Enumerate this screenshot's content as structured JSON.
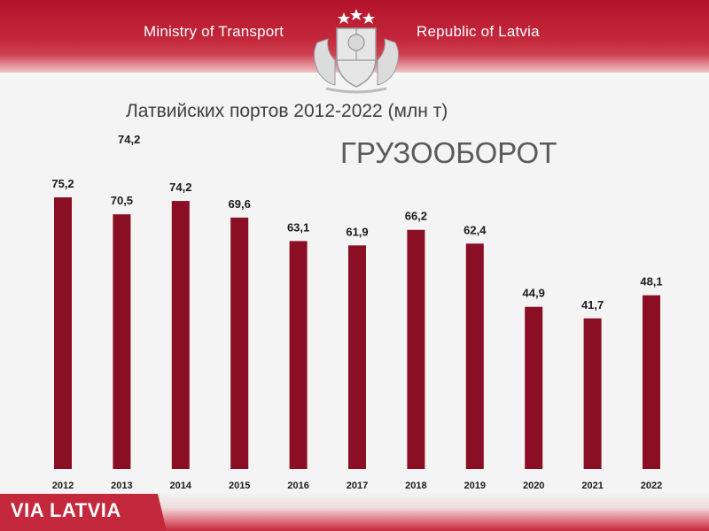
{
  "header": {
    "left_text": "Ministry of Transport",
    "right_text": "Republic of Latvia",
    "emblem_icon": "latvia-coat-of-arms-icon"
  },
  "slide": {
    "subtitle": "Латвийских портов 2012-2022 (млн т)",
    "title": "ГРУЗООБОРОТ",
    "stray_label": "74,2"
  },
  "footer": {
    "logo_text": "VIA LATVIA",
    "logo_icon": "via-latvia-logo-icon"
  },
  "colors": {
    "bar": "#8a0e24",
    "header_red": "#c4283c"
  },
  "chart_data": {
    "type": "bar",
    "categories": [
      "2012",
      "2013",
      "2014",
      "2015",
      "2016",
      "2017",
      "2018",
      "2019",
      "2020",
      "2021",
      "2022"
    ],
    "values": [
      75.2,
      70.5,
      74.2,
      69.6,
      63.1,
      61.9,
      66.2,
      62.4,
      44.9,
      41.7,
      48.1
    ],
    "data_labels": [
      "75,2",
      "70,5",
      "74,2",
      "69,6",
      "63,1",
      "61,9",
      "66,2",
      "62,4",
      "44,9",
      "41,7",
      "48,1"
    ],
    "title": "ГРУЗООБОРОТ",
    "subtitle": "Латвийских портов 2012-2022 (млн т)",
    "xlabel": "",
    "ylabel": "",
    "ylim": [
      0,
      75.2
    ],
    "grid": false,
    "legend": "none"
  }
}
